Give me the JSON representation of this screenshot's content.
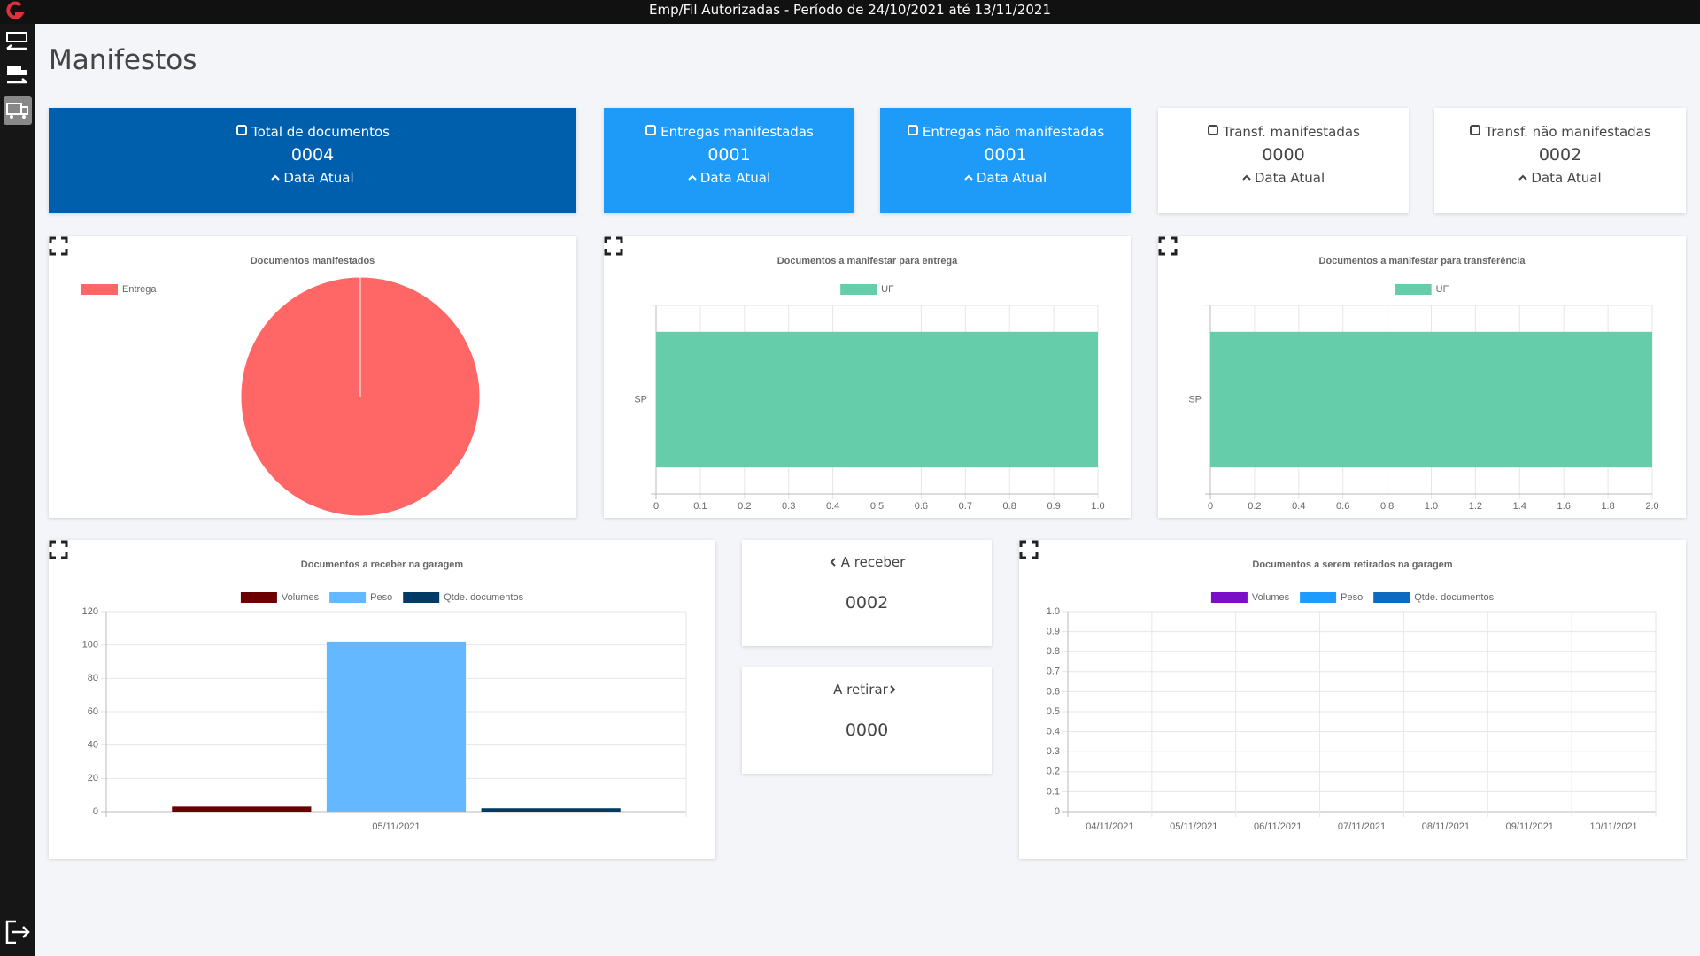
{
  "header": {
    "title": "Emp/Fil Autorizadas - Período de 24/10/2021 até 13/11/2021"
  },
  "page_title": "Manifestos",
  "cards": [
    {
      "label": "Total de documentos",
      "value": "0004",
      "footer": "Data Atual"
    },
    {
      "label": "Entregas manifestadas",
      "value": "0001",
      "footer": "Data Atual"
    },
    {
      "label": "Entregas não manifestadas",
      "value": "0001",
      "footer": "Data Atual"
    },
    {
      "label": "Transf. manifestadas",
      "value": "0000",
      "footer": "Data Atual"
    },
    {
      "label": "Transf. não manifestadas",
      "value": "0002",
      "footer": "Data Atual"
    }
  ],
  "small_cards": [
    {
      "label": "A receber",
      "value": "0002"
    },
    {
      "label": "A retirar",
      "value": "0000"
    }
  ],
  "chart_data": [
    {
      "type": "pie",
      "title": "Documentos manifestados",
      "categories": [
        "Entrega"
      ],
      "values": [
        1
      ],
      "colors": [
        "#ff6666"
      ]
    },
    {
      "type": "bar",
      "orientation": "horizontal",
      "title": "Documentos a manifestar para entrega",
      "categories": [
        "SP"
      ],
      "series": [
        {
          "name": "UF",
          "color": "#66cdaa",
          "values": [
            1
          ]
        }
      ],
      "xlim": [
        0,
        1
      ],
      "xticks": [
        0,
        0.1,
        0.2,
        0.3,
        0.4,
        0.5,
        0.6,
        0.7,
        0.8,
        0.9,
        {
          "value": 1,
          "label": "1.0"
        }
      ],
      "grid": true
    },
    {
      "type": "bar",
      "orientation": "horizontal",
      "title": "Documentos a manifestar para transferência",
      "categories": [
        "SP"
      ],
      "series": [
        {
          "name": "UF",
          "color": "#66cdaa",
          "values": [
            2
          ]
        }
      ],
      "xlim": [
        0,
        2
      ],
      "xticks": [
        0,
        0.2,
        0.4,
        0.6,
        0.8,
        {
          "value": 1,
          "label": "1.0"
        },
        1.2,
        1.4,
        1.6,
        1.8,
        {
          "value": 2,
          "label": "2.0"
        }
      ],
      "grid": true
    },
    {
      "type": "bar",
      "title": "Documentos a receber na garagem",
      "categories": [
        "05/11/2021"
      ],
      "series": [
        {
          "name": "Volumes",
          "color": "#6b0000",
          "values": [
            3
          ]
        },
        {
          "name": "Peso",
          "color": "#63b8ff",
          "values": [
            102
          ]
        },
        {
          "name": "Qtde. documentos",
          "color": "#003b66",
          "values": [
            2
          ]
        }
      ],
      "ylim": [
        0,
        120
      ],
      "yticks": [
        0,
        20,
        40,
        60,
        80,
        100,
        120
      ],
      "grid": true
    },
    {
      "type": "bar",
      "title": "Documentos a serem retirados na garagem",
      "categories": [
        "04/11/2021",
        "05/11/2021",
        "06/11/2021",
        "07/11/2021",
        "08/11/2021",
        "09/11/2021",
        "10/11/2021"
      ],
      "series": [
        {
          "name": "Volumes",
          "color": "#7b0fc9",
          "values": [
            0,
            0,
            0,
            0,
            0,
            0,
            0
          ]
        },
        {
          "name": "Peso",
          "color": "#1f9bff",
          "values": [
            0,
            0,
            0,
            0,
            0,
            0,
            0
          ]
        },
        {
          "name": "Qtde. documentos",
          "color": "#0d6abf",
          "values": [
            0,
            0,
            0,
            0,
            0,
            0,
            0
          ]
        }
      ],
      "ylim": [
        0,
        1
      ],
      "yticks": [
        0,
        0.1,
        0.2,
        0.3,
        0.4,
        0.5,
        0.6,
        0.7,
        0.8,
        0.9,
        {
          "value": 1,
          "label": "1.0"
        }
      ],
      "grid": true
    }
  ]
}
